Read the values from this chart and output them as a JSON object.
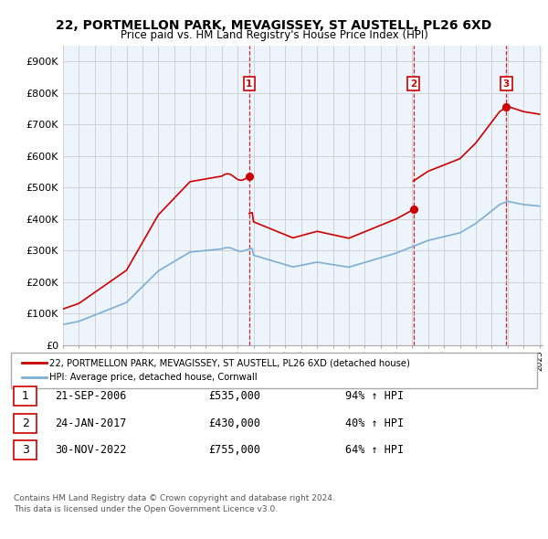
{
  "title": "22, PORTMELLON PARK, MEVAGISSEY, ST AUSTELL, PL26 6XD",
  "subtitle": "Price paid vs. HM Land Registry's House Price Index (HPI)",
  "ylim": [
    0,
    950000
  ],
  "yticks": [
    0,
    100000,
    200000,
    300000,
    400000,
    500000,
    600000,
    700000,
    800000,
    900000
  ],
  "ytick_labels": [
    "£0",
    "£100K",
    "£200K",
    "£300K",
    "£400K",
    "£500K",
    "£600K",
    "£700K",
    "£800K",
    "£900K"
  ],
  "sale_years": [
    2006.722,
    2017.069,
    2022.917
  ],
  "sale_prices": [
    535000,
    430000,
    755000
  ],
  "sale_labels": [
    "1",
    "2",
    "3"
  ],
  "legend_red": "22, PORTMELLON PARK, MEVAGISSEY, ST AUSTELL, PL26 6XD (detached house)",
  "legend_blue": "HPI: Average price, detached house, Cornwall",
  "table_data": [
    [
      "1",
      "21-SEP-2006",
      "£535,000",
      "94% ↑ HPI"
    ],
    [
      "2",
      "24-JAN-2017",
      "£430,000",
      "40% ↑ HPI"
    ],
    [
      "3",
      "30-NOV-2022",
      "£755,000",
      "64% ↑ HPI"
    ]
  ],
  "footnote1": "Contains HM Land Registry data © Crown copyright and database right 2024.",
  "footnote2": "This data is licensed under the Open Government Licence v3.0.",
  "red_color": "#cc0000",
  "blue_color": "#7bafd4",
  "chart_bg": "#eef4fb",
  "vline_color": "#cc0000",
  "grid_color": "#cccccc",
  "background_color": "#ffffff"
}
